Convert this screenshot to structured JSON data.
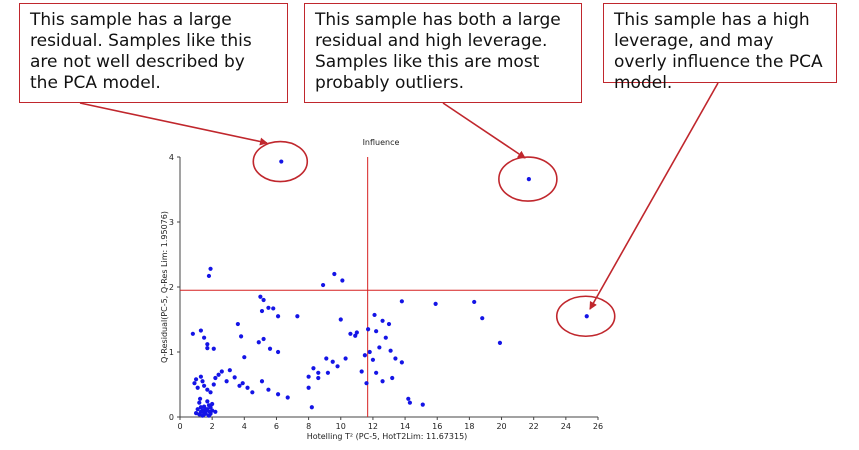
{
  "callouts": [
    {
      "text": "This sample has a large residual. Samples like this are not well described by the PCA model."
    },
    {
      "text": "This sample has both a large residual and high leverage. Samples like this are most probably outliers."
    },
    {
      "text": "This sample has a high leverage, and may overly influence the PCA model."
    }
  ],
  "colors": {
    "points": "#1414e6",
    "limit_lines": "#d62020",
    "annotations": "#c0272d"
  },
  "chart_data": {
    "type": "scatter",
    "title": "Influence",
    "xlabel": "Hotelling T² (PC-5, HotT2Lim: 11.67315)",
    "ylabel": "Q-Residual(PC-5, Q-Res Lim: 1.95076)",
    "xlim": [
      0,
      26
    ],
    "ylim": [
      0,
      4
    ],
    "xticks": [
      0,
      2,
      4,
      6,
      8,
      10,
      12,
      14,
      16,
      18,
      20,
      22,
      24,
      26
    ],
    "yticks": [
      0,
      1,
      2,
      3,
      4
    ],
    "limits": {
      "x": 11.67315,
      "y": 1.95076
    },
    "grid": false,
    "highlighted": [
      [
        6.3,
        3.93
      ],
      [
        21.7,
        3.66
      ],
      [
        25.3,
        1.55
      ]
    ],
    "points": [
      [
        6.3,
        3.93
      ],
      [
        21.7,
        3.66
      ],
      [
        25.3,
        1.55
      ],
      [
        1.9,
        2.28
      ],
      [
        1.8,
        2.17
      ],
      [
        9.6,
        2.2
      ],
      [
        8.9,
        2.03
      ],
      [
        10.1,
        2.1
      ],
      [
        5.0,
        1.85
      ],
      [
        5.2,
        1.8
      ],
      [
        3.6,
        1.43
      ],
      [
        7.3,
        1.55
      ],
      [
        5.5,
        1.68
      ],
      [
        5.8,
        1.67
      ],
      [
        5.1,
        1.63
      ],
      [
        6.1,
        1.55
      ],
      [
        10.0,
        1.5
      ],
      [
        0.8,
        1.28
      ],
      [
        1.3,
        1.33
      ],
      [
        1.5,
        1.22
      ],
      [
        1.7,
        1.12
      ],
      [
        1.7,
        1.06
      ],
      [
        2.1,
        1.05
      ],
      [
        3.8,
        1.24
      ],
      [
        4.9,
        1.15
      ],
      [
        5.2,
        1.2
      ],
      [
        5.6,
        1.05
      ],
      [
        6.1,
        1.0
      ],
      [
        4.0,
        0.92
      ],
      [
        0.9,
        0.52
      ],
      [
        1.0,
        0.58
      ],
      [
        1.1,
        0.45
      ],
      [
        1.3,
        0.62
      ],
      [
        1.4,
        0.55
      ],
      [
        1.5,
        0.48
      ],
      [
        1.7,
        0.42
      ],
      [
        1.9,
        0.38
      ],
      [
        2.1,
        0.5
      ],
      [
        2.2,
        0.6
      ],
      [
        2.4,
        0.65
      ],
      [
        2.6,
        0.7
      ],
      [
        2.9,
        0.55
      ],
      [
        3.1,
        0.72
      ],
      [
        3.4,
        0.61
      ],
      [
        3.7,
        0.48
      ],
      [
        3.9,
        0.52
      ],
      [
        4.2,
        0.45
      ],
      [
        4.5,
        0.38
      ],
      [
        5.1,
        0.55
      ],
      [
        5.5,
        0.42
      ],
      [
        6.1,
        0.35
      ],
      [
        6.7,
        0.3
      ],
      [
        1.2,
        0.22
      ],
      [
        1.3,
        0.15
      ],
      [
        1.4,
        0.1
      ],
      [
        1.5,
        0.08
      ],
      [
        1.6,
        0.05
      ],
      [
        1.7,
        0.12
      ],
      [
        1.8,
        0.18
      ],
      [
        1.9,
        0.05
      ],
      [
        2.0,
        0.1
      ],
      [
        1.2,
        0.04
      ],
      [
        1.4,
        0.02
      ],
      [
        1.6,
        0.12
      ],
      [
        1.8,
        0.02
      ],
      [
        2.0,
        0.2
      ],
      [
        1.1,
        0.12
      ],
      [
        1.3,
        0.08
      ],
      [
        1.5,
        0.16
      ],
      [
        1.7,
        0.24
      ],
      [
        1.9,
        0.15
      ],
      [
        1.0,
        0.06
      ],
      [
        2.2,
        0.08
      ],
      [
        1.25,
        0.28
      ],
      [
        1.45,
        0.03
      ],
      [
        1.65,
        0.1
      ],
      [
        1.85,
        0.08
      ],
      [
        8.0,
        0.62
      ],
      [
        8.3,
        0.75
      ],
      [
        8.6,
        0.68
      ],
      [
        8.0,
        0.45
      ],
      [
        8.2,
        0.15
      ],
      [
        8.6,
        0.6
      ],
      [
        9.1,
        0.9
      ],
      [
        9.5,
        0.85
      ],
      [
        9.8,
        0.78
      ],
      [
        9.2,
        0.68
      ],
      [
        10.3,
        0.9
      ],
      [
        10.6,
        1.28
      ],
      [
        11.0,
        1.3
      ],
      [
        11.5,
        0.95
      ],
      [
        11.8,
        1.0
      ],
      [
        11.3,
        0.7
      ],
      [
        11.6,
        0.52
      ],
      [
        12.0,
        0.88
      ],
      [
        12.4,
        1.07
      ],
      [
        12.8,
        1.22
      ],
      [
        13.1,
        1.02
      ],
      [
        13.4,
        0.9
      ],
      [
        13.8,
        0.84
      ],
      [
        12.2,
        0.68
      ],
      [
        12.6,
        0.55
      ],
      [
        13.2,
        0.6
      ],
      [
        14.2,
        0.28
      ],
      [
        14.3,
        0.22
      ],
      [
        15.1,
        0.19
      ],
      [
        13.8,
        1.78
      ],
      [
        15.9,
        1.74
      ],
      [
        18.3,
        1.77
      ],
      [
        18.8,
        1.52
      ],
      [
        19.9,
        1.14
      ],
      [
        12.1,
        1.57
      ],
      [
        12.6,
        1.48
      ],
      [
        13.0,
        1.43
      ],
      [
        12.2,
        1.32
      ],
      [
        10.9,
        1.25
      ],
      [
        11.7,
        1.35
      ]
    ]
  }
}
